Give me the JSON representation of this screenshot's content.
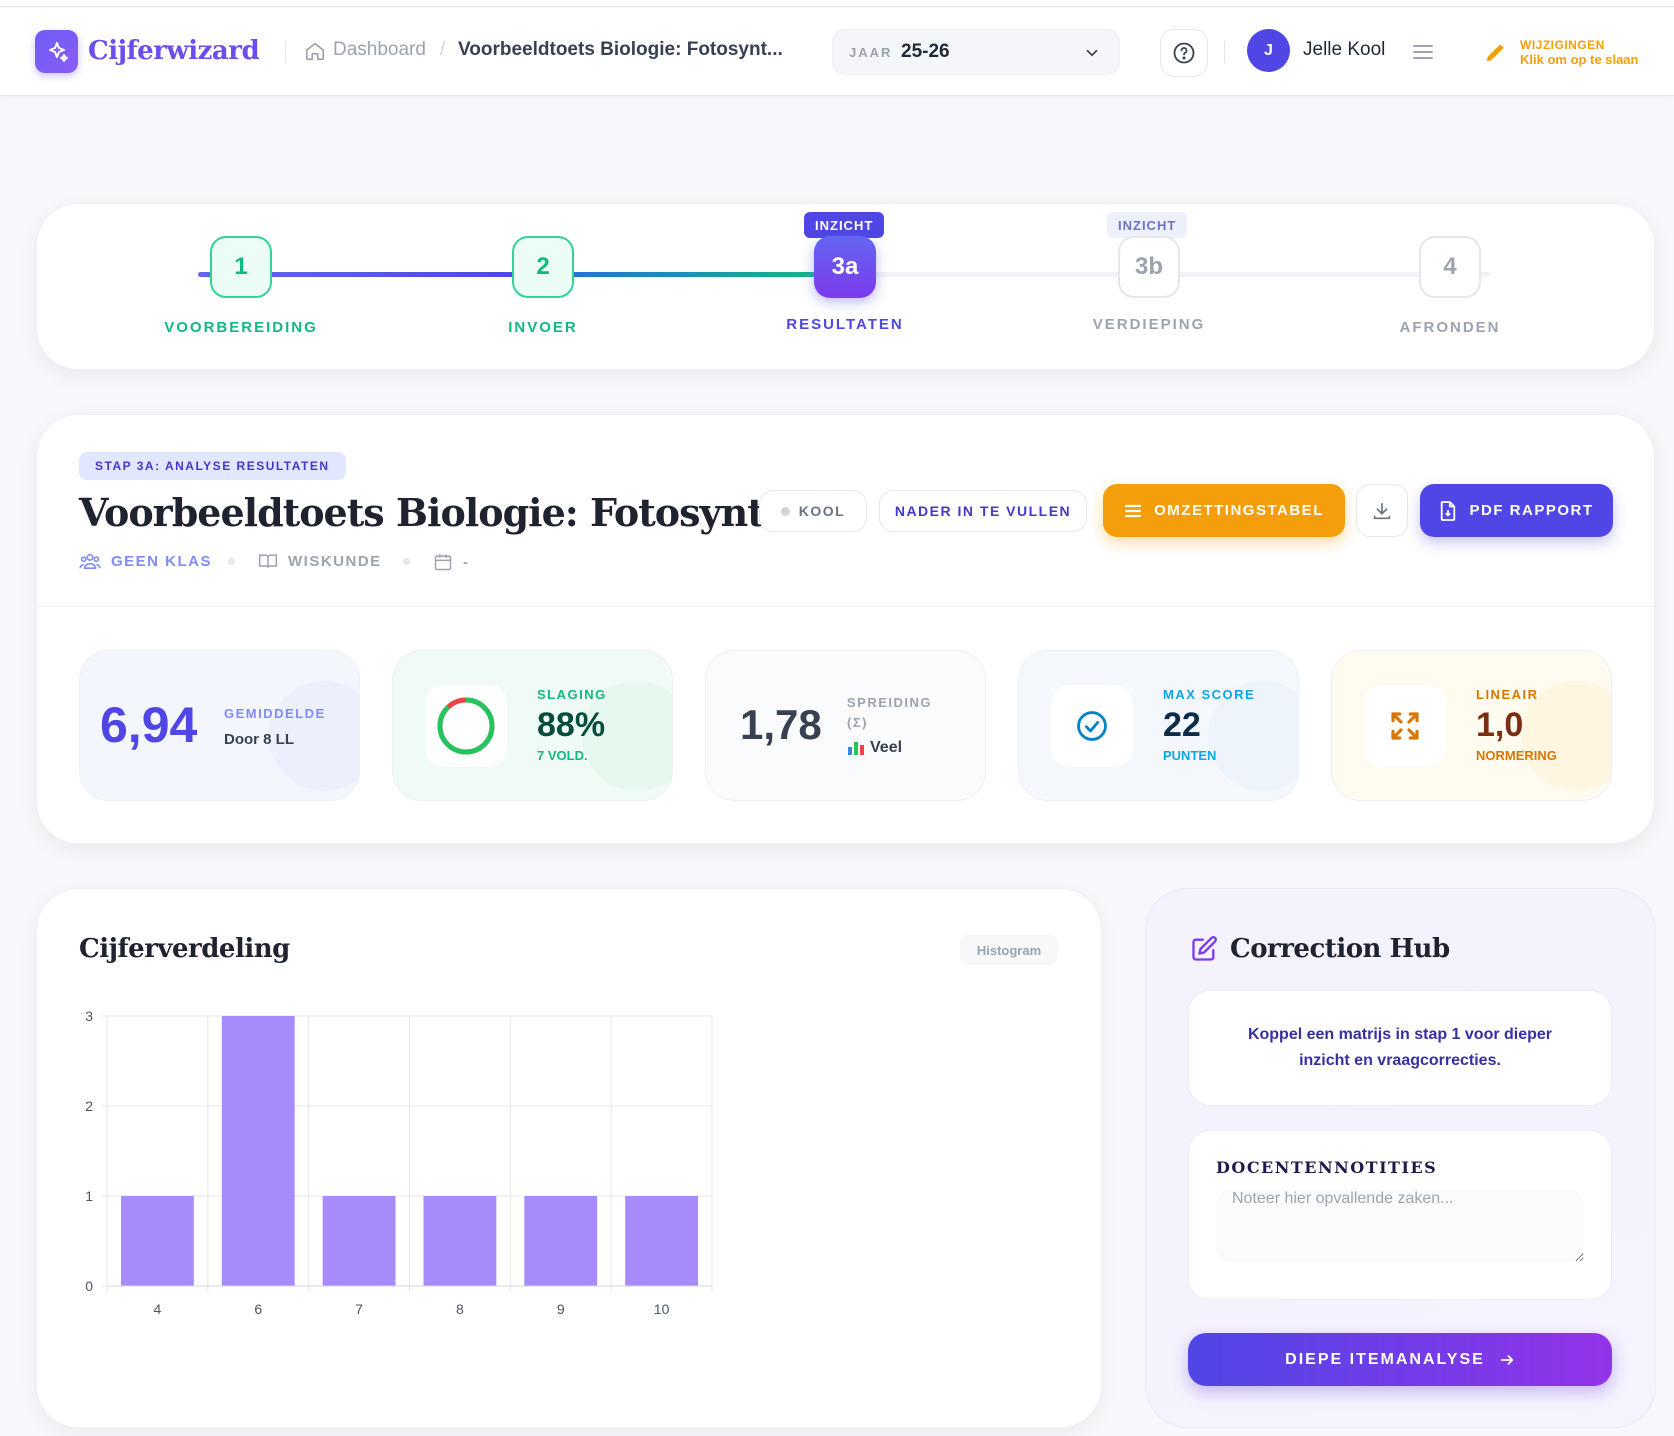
{
  "header": {
    "app_name": "Cijferwizard",
    "breadcrumb_home": "Dashboard",
    "breadcrumb_sep": "/",
    "breadcrumb_current": "Voorbeeldtoets Biologie: Fotosynt...",
    "year_label": "JAAR",
    "year_value": "25-26",
    "user_initial": "J",
    "user_name": "Jelle Kool",
    "changes_title": "WIJZIGINGEN",
    "changes_sub": "Klik om op te slaan",
    "accent_color": "#6d4cf0"
  },
  "stepper": {
    "steps": [
      {
        "number": "1",
        "label": "VOORBEREIDING",
        "state": "done"
      },
      {
        "number": "2",
        "label": "INVOER",
        "state": "done"
      },
      {
        "number": "3a",
        "label": "RESULTATEN",
        "state": "active",
        "tag": "INZICHT"
      },
      {
        "number": "3b",
        "label": "VERDIEPING",
        "state": "todo",
        "tag": "INZICHT"
      },
      {
        "number": "4",
        "label": "AFRONDEN",
        "state": "todo"
      }
    ]
  },
  "analysis": {
    "badge": "STAP 3A: ANALYSE RESULTATEN",
    "title": "Voorbeeldtoets Biologie: Fotosynt...",
    "meta": {
      "klas": "GEEN KLAS",
      "vak": "WISKUNDE",
      "datum": "-"
    },
    "buttons": {
      "teacher": "KOOL",
      "pending": "NADER IN TE VULLEN",
      "conversion": "OMZETTINGSTABEL",
      "pdf": "PDF RAPPORT"
    },
    "stats": {
      "average": {
        "value": "6,94",
        "label": "GEMIDDELDE",
        "sub": "Door 8 LL"
      },
      "pass": {
        "label": "SLAGING",
        "value": "88%",
        "sub": "7 VOLD.",
        "fraction": 0.88
      },
      "spread": {
        "value": "1,78",
        "label": "SPREIDING",
        "sigma": "(Σ)",
        "sub": "Veel"
      },
      "max": {
        "label": "MAX SCORE",
        "value": "22",
        "sub": "PUNTEN"
      },
      "norm": {
        "label": "LINEAIR",
        "value": "1,0",
        "sub": "NORMERING"
      }
    }
  },
  "chart_card": {
    "title": "Cijferverdeling",
    "tag": "Histogram"
  },
  "chart_data": {
    "type": "bar",
    "categories": [
      "4",
      "6",
      "7",
      "8",
      "9",
      "10"
    ],
    "values": [
      1,
      3,
      1,
      1,
      1,
      1
    ],
    "ylim": [
      0,
      3
    ],
    "yticks": [
      "0",
      "1",
      "2",
      "3"
    ],
    "grid": true,
    "bar_color": "#a78bfa"
  },
  "hub": {
    "title": "Correction Hub",
    "info": "Koppel een matrijs in stap 1 voor dieper inzicht en vraagcorrecties.",
    "notes_label": "DOCENTENNOTITIES",
    "notes_placeholder": "Noteer hier opvallende zaken...",
    "deep_button": "DIEPE ITEMANALYSE"
  }
}
